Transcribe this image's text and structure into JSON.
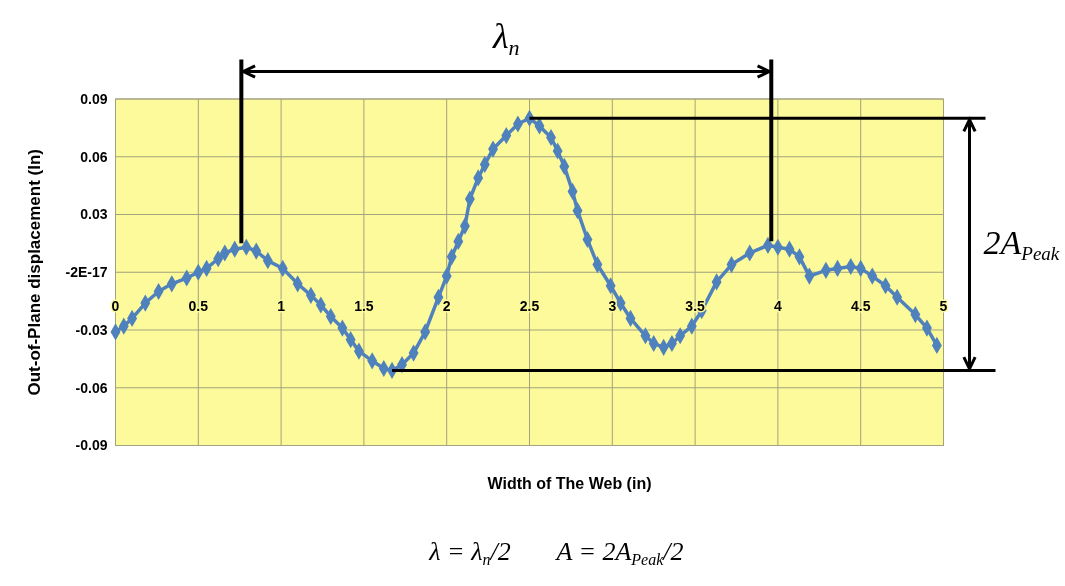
{
  "chart_data": {
    "type": "line",
    "xlabel": "Width of The Web (in)",
    "ylabel": "Out-of-Plane displacement (In)",
    "x": [
      0,
      0.05,
      0.1,
      0.18,
      0.26,
      0.34,
      0.43,
      0.5,
      0.55,
      0.62,
      0.66,
      0.72,
      0.79,
      0.85,
      0.92,
      1.01,
      1.1,
      1.18,
      1.24,
      1.3,
      1.37,
      1.42,
      1.47,
      1.55,
      1.62,
      1.67,
      1.73,
      1.8,
      1.87,
      1.95,
      2,
      2.03,
      2.07,
      2.11,
      2.14,
      2.19,
      2.23,
      2.28,
      2.36,
      2.43,
      2.5,
      2.56,
      2.63,
      2.67,
      2.71,
      2.76,
      2.79,
      2.85,
      2.91,
      2.99,
      3.05,
      3.11,
      3.2,
      3.25,
      3.31,
      3.36,
      3.41,
      3.48,
      3.54,
      3.63,
      3.72,
      3.83,
      3.94,
      4,
      4.07,
      4.13,
      4.19,
      4.29,
      4.36,
      4.44,
      4.5,
      4.57,
      4.65,
      4.72,
      4.83,
      4.9,
      4.96
    ],
    "series": [
      {
        "color": "#4f81bd",
        "values": [
          -0.031,
          -0.028,
          -0.024,
          -0.016,
          -0.01,
          -0.006,
          -0.003,
          0,
          0.002,
          0.007,
          0.01,
          0.012,
          0.013,
          0.011,
          0.006,
          0.002,
          -0.006,
          -0.012,
          -0.017,
          -0.023,
          -0.029,
          -0.035,
          -0.041,
          -0.046,
          -0.05,
          -0.051,
          -0.048,
          -0.042,
          -0.031,
          -0.013,
          -0.002,
          0.008,
          0.016,
          0.024,
          0.038,
          0.049,
          0.056,
          0.064,
          0.071,
          0.077,
          0.08,
          0.076,
          0.07,
          0.063,
          0.055,
          0.042,
          0.032,
          0.017,
          0.004,
          -0.007,
          -0.016,
          -0.024,
          -0.033,
          -0.037,
          -0.039,
          -0.037,
          -0.033,
          -0.028,
          -0.02,
          -0.005,
          0.004,
          0.01,
          0.014,
          0.013,
          0.012,
          0.008,
          -0.002,
          0.001,
          0.002,
          0.003,
          0.002,
          -0.002,
          -0.007,
          -0.013,
          -0.022,
          -0.029,
          -0.038
        ]
      }
    ],
    "xlim": [
      0,
      5
    ],
    "xticks": [
      0,
      0.5,
      1,
      1.5,
      2,
      2.5,
      3,
      3.5,
      4,
      4.5,
      5
    ],
    "ylim": [
      -0.09,
      0.09
    ],
    "yticks": [
      -0.09,
      -0.06,
      -0.03,
      {
        "value": 0,
        "label": "-2E-17"
      },
      0.03,
      0.06,
      0.09
    ],
    "grid": true,
    "marker": "diamond",
    "line_style": "solid",
    "ref_lines": [
      {
        "axis": "x",
        "value": 0.76,
        "color": "#000000"
      },
      {
        "axis": "x",
        "value": 3.96,
        "color": "#000000"
      },
      {
        "axis": "y",
        "value": 0.08,
        "color": "#000000"
      },
      {
        "axis": "y",
        "value": -0.051,
        "color": "#000000"
      }
    ],
    "annotations": [
      "λ$_{n}$",
      "2A$_{Peak}$",
      "λ = λ$_{n}$/2",
      "A = 2A$_{Peak}$/2"
    ]
  }
}
